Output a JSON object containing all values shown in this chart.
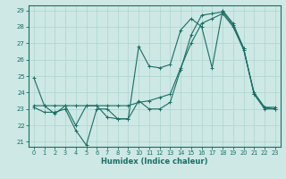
{
  "xlabel": "Humidex (Indice chaleur)",
  "bg_color": "#cde8e5",
  "grid_color": "#aed4d0",
  "line_color": "#1a6e63",
  "xlim": [
    -0.5,
    23.5
  ],
  "ylim": [
    20.7,
    29.3
  ],
  "yticks": [
    21,
    22,
    23,
    24,
    25,
    26,
    27,
    28,
    29
  ],
  "xticks": [
    0,
    1,
    2,
    3,
    4,
    5,
    6,
    7,
    8,
    9,
    10,
    11,
    12,
    13,
    14,
    15,
    16,
    17,
    18,
    19,
    20,
    21,
    22,
    23
  ],
  "line1_jagged": {
    "x": [
      0,
      1,
      2,
      3,
      4,
      5,
      6,
      7,
      8,
      9,
      10,
      11,
      12,
      13,
      14,
      15,
      16,
      17,
      18,
      19,
      20,
      21,
      22,
      23
    ],
    "y": [
      24.9,
      23.2,
      22.7,
      23.2,
      22.0,
      23.2,
      23.2,
      22.5,
      22.4,
      22.4,
      26.8,
      25.6,
      25.5,
      25.7,
      27.8,
      28.5,
      28.0,
      25.5,
      29.0,
      28.2,
      26.7,
      23.9,
      23.1,
      23.0
    ]
  },
  "line2_smooth": {
    "x": [
      0,
      1,
      2,
      3,
      4,
      5,
      6,
      7,
      8,
      9,
      10,
      11,
      12,
      13,
      14,
      15,
      16,
      17,
      18,
      19,
      20,
      21,
      22,
      23
    ],
    "y": [
      23.2,
      23.2,
      23.2,
      23.2,
      23.2,
      23.2,
      23.2,
      23.2,
      23.2,
      23.2,
      23.4,
      23.5,
      23.7,
      23.9,
      25.5,
      27.0,
      28.2,
      28.5,
      28.8,
      28.0,
      26.6,
      24.0,
      23.1,
      23.1
    ]
  },
  "line3_lower": {
    "x": [
      0,
      1,
      2,
      3,
      4,
      5,
      6,
      7,
      8,
      9,
      10,
      11,
      12,
      13,
      14,
      15,
      16,
      17,
      18,
      19,
      20,
      21,
      22,
      23
    ],
    "y": [
      23.1,
      22.8,
      22.8,
      23.0,
      21.7,
      20.8,
      23.0,
      23.0,
      22.4,
      22.4,
      23.5,
      23.0,
      23.0,
      23.4,
      25.4,
      27.5,
      28.7,
      28.8,
      28.9,
      28.1,
      26.7,
      23.9,
      23.0,
      23.0
    ]
  }
}
